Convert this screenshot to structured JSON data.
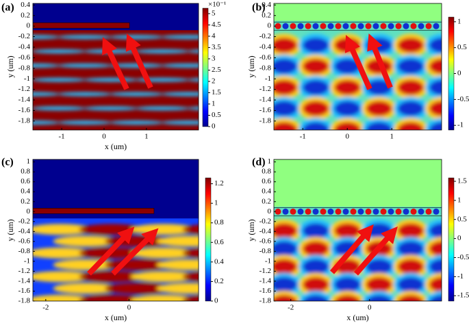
{
  "chart_data": [
    {
      "type": "heatmap",
      "panel": "(a)",
      "xlabel": "x (um)",
      "ylabel": "y (um)",
      "xlim": [
        -1.68,
        2.23
      ],
      "xticks": [
        -1,
        0,
        1
      ],
      "ylim": [
        -1.97,
        0.43
      ],
      "yticks": [
        0.4,
        0.2,
        0,
        -0.2,
        -0.4,
        -0.6,
        -0.8,
        -1,
        -1.2,
        -1.4,
        -1.6,
        -1.8
      ],
      "colorbar": {
        "lim": [
          0,
          5.24
        ],
        "ticks": [
          0,
          0.5,
          1,
          1.5,
          2,
          2.5,
          3,
          3.5,
          4,
          4.5,
          5
        ],
        "label": "×10⁻¹"
      }
    },
    {
      "type": "heatmap",
      "panel": "(b)",
      "ylabel": "y (um)",
      "xlim": [
        -1.65,
        2.12
      ],
      "xticks": [
        -1,
        0,
        1
      ],
      "ylim": [
        -1.97,
        0.43
      ],
      "yticks": [
        0.4,
        0.2,
        0,
        -0.2,
        -0.4,
        -0.6,
        -0.8,
        -1,
        -1.2,
        -1.4,
        -1.6,
        -1.8
      ],
      "colorbar": {
        "lim": [
          -1.09,
          1.09
        ],
        "ticks": [
          -1,
          -0.5,
          0,
          0.5,
          1
        ]
      }
    },
    {
      "type": "heatmap",
      "panel": "(c)",
      "xlabel": "x (um)",
      "ylabel": "y (um)",
      "xlim": [
        -2.31,
        1.67
      ],
      "xticks": [
        -2,
        0
      ],
      "ylim": [
        -1.8,
        1.05
      ],
      "yticks": [
        1,
        0.8,
        0.6,
        0.4,
        0.2,
        0,
        -0.2,
        -0.4,
        -0.6,
        -0.8,
        -1,
        -1.2,
        -1.4,
        -1.6,
        -1.8
      ],
      "colorbar": {
        "lim": [
          0,
          1.26
        ],
        "ticks": [
          0,
          0.2,
          0.4,
          0.6,
          0.8,
          1,
          1.2
        ]
      }
    },
    {
      "type": "heatmap",
      "panel": "(d)",
      "xlabel": "x (um)",
      "ylabel": "y (um)",
      "xlim": [
        -2.43,
        1.83
      ],
      "xticks": [
        -2,
        0
      ],
      "ylim": [
        -1.8,
        1.05
      ],
      "yticks": [
        1,
        0.8,
        0.6,
        0.4,
        0.2,
        0,
        -0.2,
        -0.4,
        -0.6,
        -0.8,
        -1,
        -1.2,
        -1.4,
        -1.6,
        -1.8
      ],
      "colorbar": {
        "lim": [
          -1.64,
          1.59
        ],
        "ticks": [
          -1.5,
          -1,
          -0.5,
          0,
          0.5,
          1,
          1.5
        ]
      }
    }
  ]
}
